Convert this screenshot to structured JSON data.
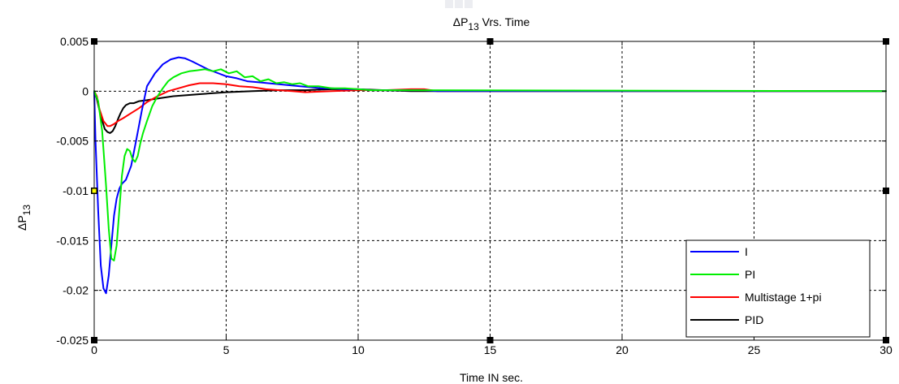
{
  "chart_data": {
    "type": "line",
    "title": {
      "prefix": "ΔP",
      "subscript": "13",
      "suffix": " Vrs. Time"
    },
    "xlabel": "Time IN sec.",
    "ylabel": {
      "prefix": "ΔP",
      "subscript": "13"
    },
    "xlim": [
      0,
      30
    ],
    "ylim": [
      -0.025,
      0.005
    ],
    "xticks": [
      0,
      5,
      10,
      15,
      20,
      25,
      30
    ],
    "xtick_labels": [
      "0",
      "5",
      "10",
      "15",
      "20",
      "25",
      "30"
    ],
    "yticks": [
      0.005,
      0,
      -0.005,
      -0.01,
      -0.015,
      -0.02,
      -0.025
    ],
    "ytick_labels": [
      "0.005",
      "0",
      "-0.005",
      "-0.01",
      "-0.015",
      "-0.02",
      "-0.025"
    ],
    "grid": true,
    "legend_position": "bottom-right",
    "series": [
      {
        "name": "I",
        "color": "#0000ff",
        "x": [
          0,
          0.05,
          0.15,
          0.25,
          0.35,
          0.45,
          0.55,
          0.65,
          0.75,
          0.85,
          0.95,
          1.05,
          1.2,
          1.4,
          1.6,
          1.8,
          2.0,
          2.3,
          2.6,
          2.9,
          3.2,
          3.45,
          3.7,
          4.0,
          4.3,
          4.6,
          5.0,
          5.4,
          5.8,
          6.2,
          6.6,
          7.0,
          7.4,
          7.8,
          8.2,
          8.6,
          9.0,
          9.5,
          10.0,
          10.5,
          11.0,
          11.5,
          12.0,
          12.5,
          13.0,
          30
        ],
        "y": [
          0,
          -0.005,
          -0.012,
          -0.0175,
          -0.0198,
          -0.0203,
          -0.0185,
          -0.0155,
          -0.0125,
          -0.0108,
          -0.0098,
          -0.0093,
          -0.0089,
          -0.0075,
          -0.0048,
          -0.002,
          0.0005,
          0.0018,
          0.0027,
          0.0032,
          0.0034,
          0.0033,
          0.003,
          0.0026,
          0.0022,
          0.0019,
          0.0015,
          0.0013,
          0.001,
          0.0009,
          0.0008,
          0.0007,
          0.0006,
          0.0005,
          0.0004,
          0.0003,
          0.0003,
          0.0002,
          0.0002,
          0.0001,
          0.0001,
          0.0001,
          0.0001,
          0.0001,
          0,
          0
        ]
      },
      {
        "name": "PI",
        "color": "#00ee00",
        "x": [
          0,
          0.15,
          0.3,
          0.45,
          0.55,
          0.65,
          0.75,
          0.85,
          0.95,
          1.05,
          1.15,
          1.25,
          1.35,
          1.45,
          1.55,
          1.65,
          1.75,
          1.85,
          2.0,
          2.2,
          2.4,
          2.6,
          2.8,
          3.0,
          3.3,
          3.6,
          3.9,
          4.2,
          4.5,
          4.8,
          5.1,
          5.4,
          5.7,
          6.0,
          6.3,
          6.6,
          6.9,
          7.2,
          7.5,
          7.8,
          8.1,
          8.5,
          9.0,
          9.5,
          10.0,
          10.5,
          11.0,
          30
        ],
        "y": [
          0,
          -0.001,
          -0.004,
          -0.0095,
          -0.0138,
          -0.0168,
          -0.017,
          -0.0155,
          -0.012,
          -0.0085,
          -0.0065,
          -0.0058,
          -0.006,
          -0.0068,
          -0.0071,
          -0.0065,
          -0.0052,
          -0.0042,
          -0.003,
          -0.0015,
          -0.0005,
          0.0003,
          0.001,
          0.0014,
          0.0018,
          0.002,
          0.0021,
          0.0022,
          0.002,
          0.0022,
          0.0018,
          0.002,
          0.0014,
          0.0015,
          0.001,
          0.0012,
          0.0008,
          0.0009,
          0.0007,
          0.0008,
          0.0005,
          0.0005,
          0.0003,
          0.0003,
          0.0002,
          0.0001,
          0.0001,
          0
        ]
      },
      {
        "name": "Multistage 1+pi",
        "color": "#ff0000",
        "x": [
          0,
          0.1,
          0.2,
          0.35,
          0.5,
          0.6,
          0.75,
          0.9,
          1.1,
          1.4,
          1.7,
          2.0,
          2.4,
          2.8,
          3.2,
          3.6,
          4.0,
          4.5,
          5.0,
          5.5,
          6.0,
          6.5,
          7.0,
          7.5,
          8.0,
          9.0,
          10.0,
          11.0,
          12.0,
          12.5,
          13.0,
          30
        ],
        "y": [
          0,
          -0.0005,
          -0.0018,
          -0.003,
          -0.0035,
          -0.0035,
          -0.0033,
          -0.003,
          -0.0027,
          -0.0022,
          -0.0017,
          -0.0011,
          -0.0005,
          0,
          0.0003,
          0.0006,
          0.0008,
          0.0008,
          0.0007,
          0.0005,
          0.0004,
          0.0002,
          0.0001,
          0,
          -0.0001,
          0,
          0.0001,
          0.0001,
          0.0002,
          0.0002,
          0,
          0
        ]
      },
      {
        "name": "PID",
        "color": "#000000",
        "x": [
          0,
          0.1,
          0.25,
          0.4,
          0.5,
          0.6,
          0.7,
          0.8,
          0.9,
          1.0,
          1.1,
          1.2,
          1.35,
          1.5,
          1.7,
          2.0,
          2.5,
          3.0,
          4.0,
          5.0,
          6.0,
          7.0,
          8.0,
          9.0,
          10.0,
          11.0,
          12.0,
          30
        ],
        "y": [
          0,
          -0.0008,
          -0.0025,
          -0.0038,
          -0.0041,
          -0.0042,
          -0.004,
          -0.0035,
          -0.0028,
          -0.0022,
          -0.0017,
          -0.0014,
          -0.0012,
          -0.0012,
          -0.001,
          -0.0009,
          -0.0007,
          -0.0005,
          -0.0003,
          -0.0001,
          0,
          0.0001,
          0.0001,
          0.0002,
          0.0002,
          0.0001,
          0,
          0
        ]
      }
    ]
  }
}
